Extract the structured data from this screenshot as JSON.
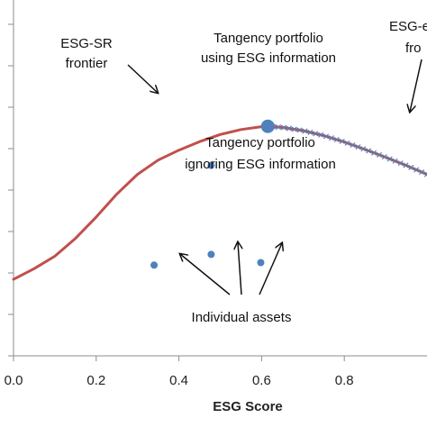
{
  "chart_data": {
    "type": "line",
    "title": "",
    "xlabel": "ESG Score",
    "ylabel": "",
    "xlim": [
      0,
      1
    ],
    "x_ticks": [
      "0.0",
      "0.2",
      "0.4",
      "0.6",
      "0.8"
    ],
    "grid": false,
    "series": [
      {
        "style": "solid",
        "color": "#c0504d",
        "x": [
          0.0,
          0.05,
          0.1,
          0.15,
          0.2,
          0.25,
          0.3,
          0.35,
          0.4,
          0.45,
          0.5,
          0.55,
          0.6,
          0.615
        ],
        "y": [
          0.215,
          0.245,
          0.28,
          0.33,
          0.39,
          0.455,
          0.51,
          0.55,
          0.578,
          0.602,
          0.622,
          0.636,
          0.644,
          0.645
        ]
      },
      {
        "style": "solid-with-x-markers",
        "color": "#c0504d",
        "marker_color": "#4f81bd",
        "x": [
          0.615,
          0.65,
          0.7,
          0.75,
          0.8,
          0.85,
          0.9,
          0.95,
          1.0
        ],
        "y": [
          0.645,
          0.642,
          0.633,
          0.619,
          0.601,
          0.58,
          0.558,
          0.535,
          0.51
        ]
      }
    ],
    "points": [
      {
        "label": "Tangency portfolio using ESG information",
        "x": 0.615,
        "y": 0.645,
        "size": "large",
        "color": "#4f81bd"
      },
      {
        "label": "Tangency portfolio ignoring ESG information",
        "x": 0.478,
        "y": 0.535,
        "size": "small",
        "color": "#4f81bd"
      },
      {
        "label": "Individual asset",
        "x": 0.34,
        "y": 0.255,
        "size": "small",
        "color": "#4f81bd"
      },
      {
        "label": "Individual asset",
        "x": 0.478,
        "y": 0.285,
        "size": "small",
        "color": "#4f81bd"
      },
      {
        "label": "Individual asset",
        "x": 0.598,
        "y": 0.262,
        "size": "small",
        "color": "#4f81bd"
      }
    ],
    "annotations": {
      "esg_sr_line1": "ESG-SR",
      "esg_sr_line2": "frontier",
      "tangency_esg_line1": "Tangency portfolio",
      "tangency_esg_line2": "using ESG information",
      "tangency_ignore_line1": "Tangency portfolio",
      "tangency_ignore_line2": "ignoring ESG information",
      "esg_eff_line1": "ESG-e",
      "esg_eff_line2": "fro",
      "individual_assets": "Individual assets"
    }
  }
}
